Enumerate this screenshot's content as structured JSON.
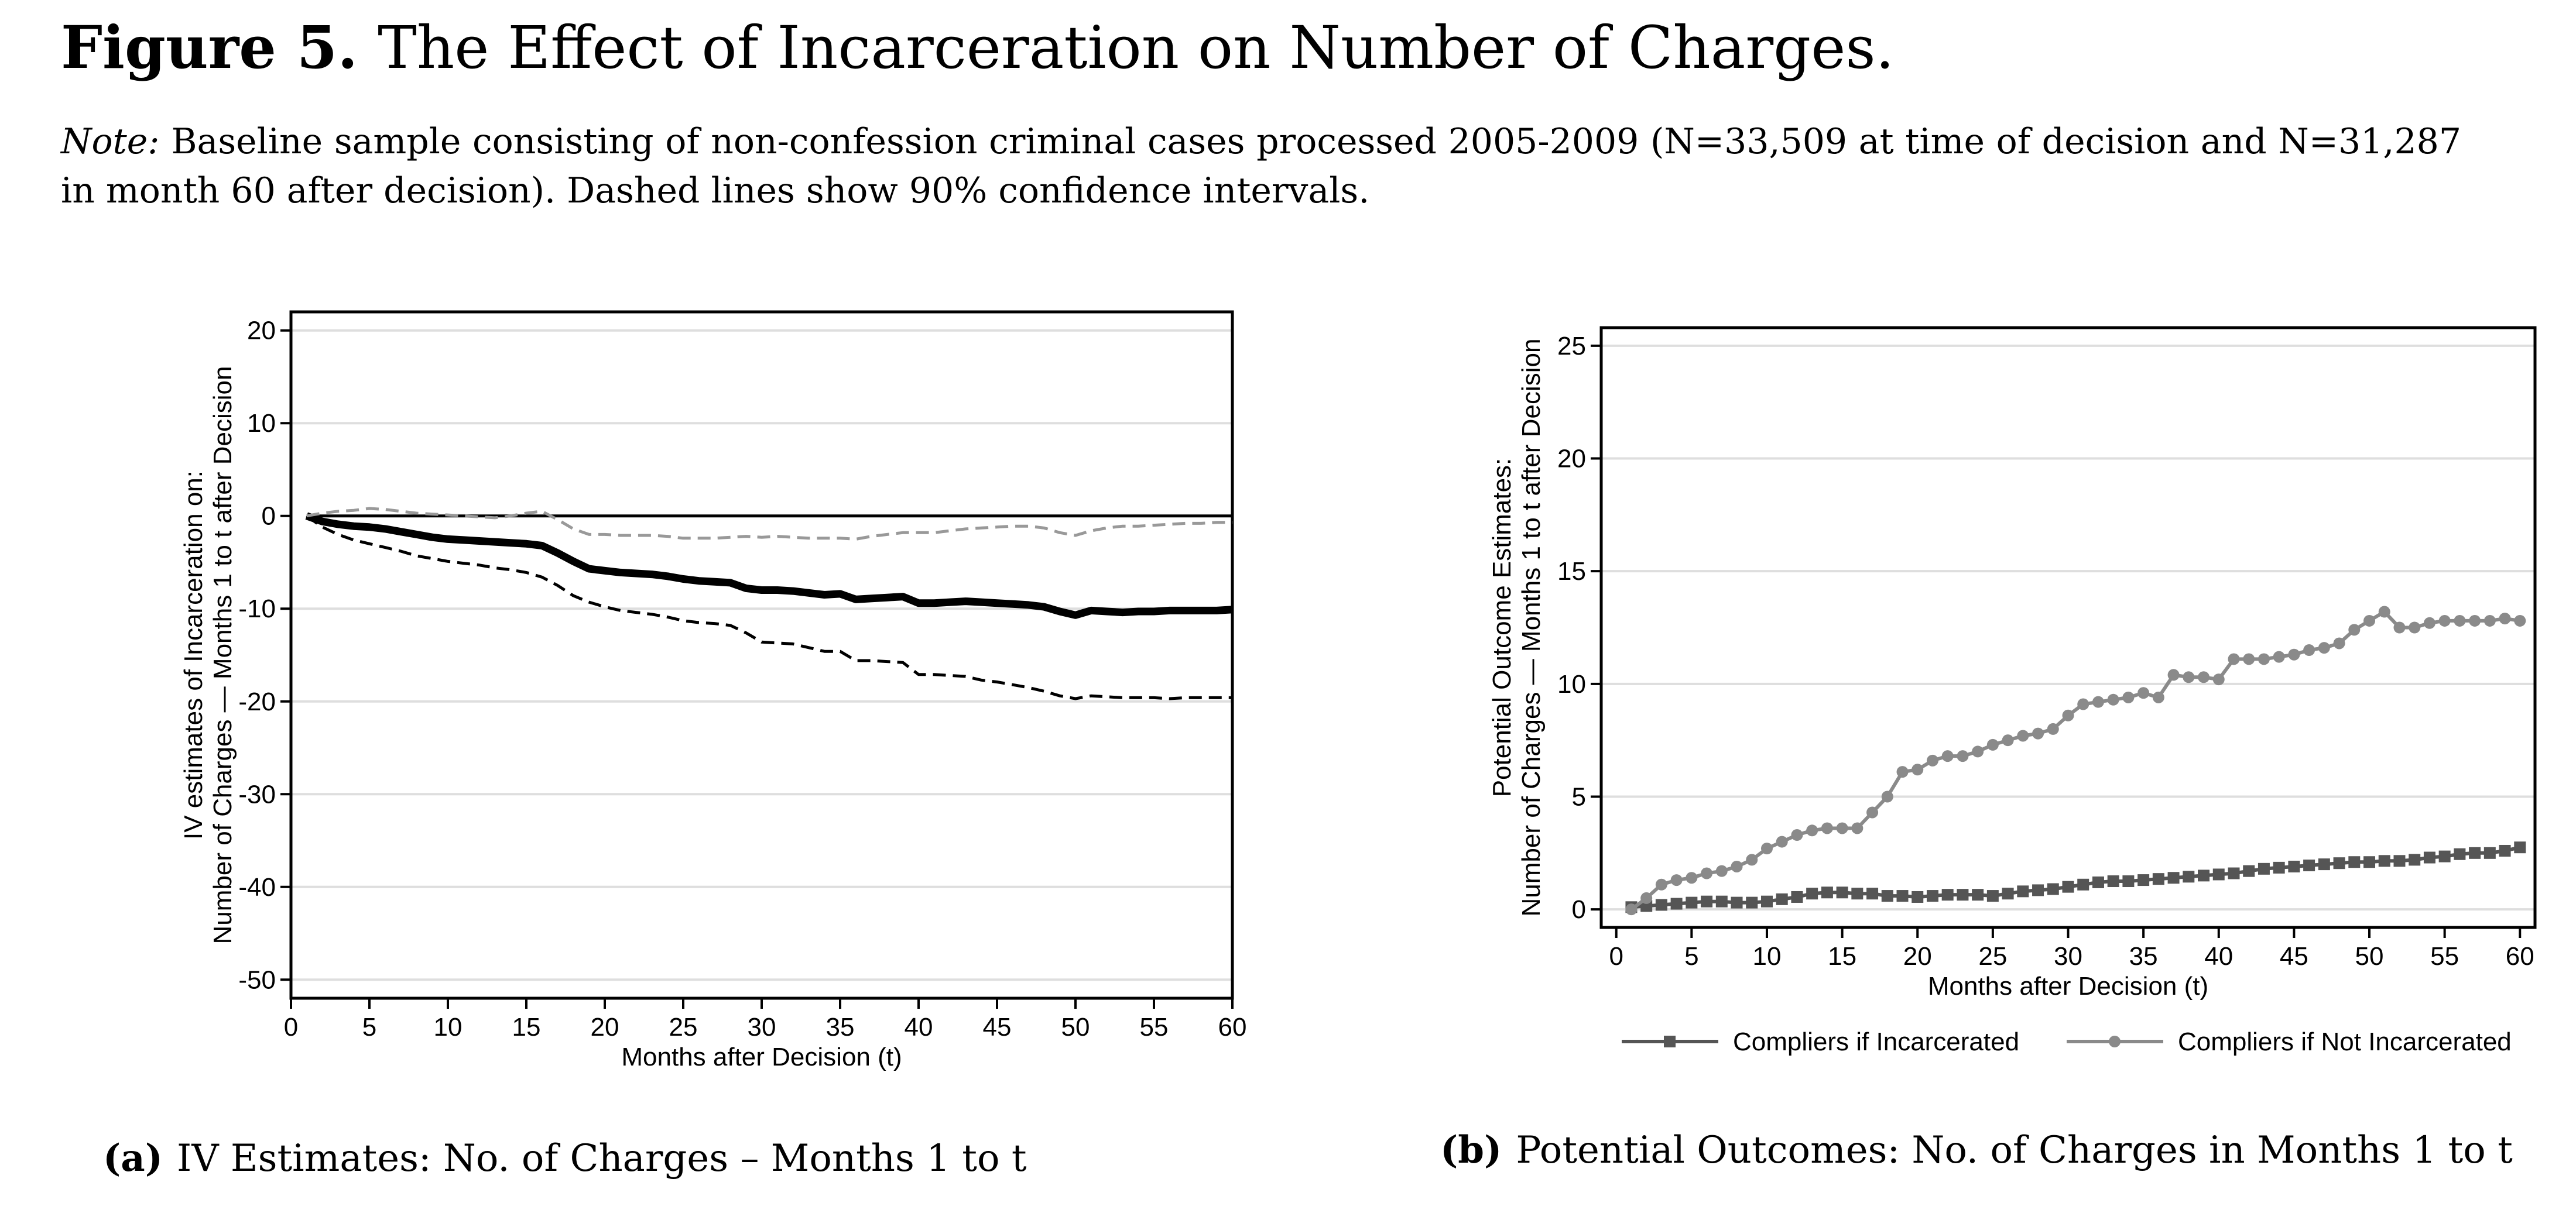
{
  "figure": {
    "number": "Figure 5.",
    "title": "The Effect of Incarceration on Number of Charges.",
    "note_label": "Note:",
    "note_text": "Baseline sample consisting of non-confession criminal cases processed 2005-2009 (N=33,509 at time of decision and N=31,287 in month 60 after decision). Dashed lines show 90% confidence intervals."
  },
  "captions": {
    "a_tag": "(a)",
    "a_text": "IV Estimates: No. of Charges – Months 1 to t",
    "b_tag": "(b)",
    "b_text": "Potential Outcomes: No. of Charges in Months 1 to t"
  },
  "chart_data": [
    {
      "type": "line",
      "title": "",
      "xlabel": "Months after Decision (t)",
      "ylabel_lines": [
        "IV estimates of Incarceration on:",
        "Number of Charges — Months 1 to t after Decision"
      ],
      "xlim": [
        0,
        60
      ],
      "ylim": [
        -52,
        22
      ],
      "xticks": [
        0,
        5,
        10,
        15,
        20,
        25,
        30,
        35,
        40,
        45,
        50,
        55,
        60
      ],
      "yticks": [
        -50,
        -40,
        -30,
        -20,
        -10,
        0,
        10,
        20
      ],
      "grid": true,
      "reference_line": 0,
      "x": [
        1,
        2,
        3,
        4,
        5,
        6,
        7,
        8,
        9,
        10,
        11,
        12,
        13,
        14,
        15,
        16,
        17,
        18,
        19,
        20,
        21,
        22,
        23,
        24,
        25,
        26,
        27,
        28,
        29,
        30,
        31,
        32,
        33,
        34,
        35,
        36,
        37,
        38,
        39,
        40,
        41,
        42,
        43,
        44,
        45,
        46,
        47,
        48,
        49,
        50,
        51,
        52,
        53,
        54,
        55,
        56,
        57,
        58,
        59,
        60
      ],
      "series": [
        {
          "style": "solid",
          "color": "#000000",
          "values": [
            0,
            -0.6,
            -0.9,
            -1.1,
            -1.2,
            -1.4,
            -1.7,
            -2.0,
            -2.3,
            -2.5,
            -2.6,
            -2.7,
            -2.8,
            -2.9,
            -3.0,
            -3.2,
            -4.0,
            -4.9,
            -5.7,
            -5.9,
            -6.1,
            -6.2,
            -6.3,
            -6.5,
            -6.8,
            -7.0,
            -7.1,
            -7.2,
            -7.8,
            -8.0,
            -8.0,
            -8.1,
            -8.3,
            -8.5,
            -8.4,
            -9.0,
            -8.9,
            -8.8,
            -8.7,
            -9.4,
            -9.4,
            -9.3,
            -9.2,
            -9.3,
            -9.4,
            -9.5,
            -9.6,
            -9.8,
            -10.3,
            -10.7,
            -10.2,
            -10.3,
            -10.4,
            -10.3,
            -10.3,
            -10.2,
            -10.2,
            -10.2,
            -10.2,
            -10.1
          ]
        },
        {
          "style": "dashed",
          "color": "#000000",
          "values": [
            0,
            -1.2,
            -2.0,
            -2.6,
            -3.0,
            -3.4,
            -3.8,
            -4.3,
            -4.6,
            -4.9,
            -5.1,
            -5.3,
            -5.6,
            -5.8,
            -6.1,
            -6.6,
            -7.5,
            -8.6,
            -9.3,
            -9.8,
            -10.2,
            -10.4,
            -10.6,
            -10.9,
            -11.3,
            -11.5,
            -11.6,
            -11.8,
            -12.6,
            -13.6,
            -13.7,
            -13.8,
            -14.2,
            -14.6,
            -14.6,
            -15.6,
            -15.6,
            -15.7,
            -15.8,
            -17.1,
            -17.1,
            -17.2,
            -17.3,
            -17.7,
            -17.9,
            -18.2,
            -18.5,
            -18.9,
            -19.4,
            -19.7,
            -19.4,
            -19.5,
            -19.6,
            -19.6,
            -19.6,
            -19.7,
            -19.6,
            -19.6,
            -19.6,
            -19.6
          ]
        },
        {
          "style": "dashed",
          "color": "#999999",
          "values": [
            0,
            0.3,
            0.5,
            0.6,
            0.8,
            0.7,
            0.5,
            0.3,
            0.2,
            0.1,
            0.0,
            -0.1,
            -0.2,
            0.0,
            0.3,
            0.5,
            -0.4,
            -1.4,
            -2.0,
            -2.0,
            -2.1,
            -2.1,
            -2.1,
            -2.2,
            -2.4,
            -2.4,
            -2.4,
            -2.3,
            -2.2,
            -2.3,
            -2.2,
            -2.3,
            -2.4,
            -2.4,
            -2.4,
            -2.5,
            -2.2,
            -2.0,
            -1.8,
            -1.8,
            -1.8,
            -1.6,
            -1.4,
            -1.3,
            -1.2,
            -1.1,
            -1.1,
            -1.3,
            -1.8,
            -2.1,
            -1.6,
            -1.3,
            -1.1,
            -1.1,
            -1.0,
            -0.9,
            -0.8,
            -0.8,
            -0.7,
            -0.7
          ]
        }
      ]
    },
    {
      "type": "line",
      "title": "",
      "xlabel": "Months after Decision (t)",
      "ylabel_lines": [
        "Potential Outcome Estimates:",
        "Number of Charges — Months 1 to t after Decision"
      ],
      "xlim": [
        -1,
        61
      ],
      "ylim": [
        -0.8,
        25.8
      ],
      "xticks": [
        0,
        5,
        10,
        15,
        20,
        25,
        30,
        35,
        40,
        45,
        50,
        55,
        60
      ],
      "yticks": [
        0,
        5,
        10,
        15,
        20,
        25
      ],
      "grid": true,
      "legend_position": "bottom",
      "x": [
        1,
        2,
        3,
        4,
        5,
        6,
        7,
        8,
        9,
        10,
        11,
        12,
        13,
        14,
        15,
        16,
        17,
        18,
        19,
        20,
        21,
        22,
        23,
        24,
        25,
        26,
        27,
        28,
        29,
        30,
        31,
        32,
        33,
        34,
        35,
        36,
        37,
        38,
        39,
        40,
        41,
        42,
        43,
        44,
        45,
        46,
        47,
        48,
        49,
        50,
        51,
        52,
        53,
        54,
        55,
        56,
        57,
        58,
        59,
        60
      ],
      "series": [
        {
          "name": "Compliers if Incarcerated",
          "color": "#555555",
          "marker": "square",
          "values": [
            0.1,
            0.15,
            0.2,
            0.25,
            0.3,
            0.35,
            0.35,
            0.3,
            0.3,
            0.35,
            0.45,
            0.55,
            0.7,
            0.75,
            0.75,
            0.7,
            0.7,
            0.6,
            0.6,
            0.55,
            0.6,
            0.65,
            0.65,
            0.65,
            0.6,
            0.7,
            0.8,
            0.85,
            0.9,
            1.0,
            1.1,
            1.2,
            1.25,
            1.25,
            1.3,
            1.35,
            1.4,
            1.45,
            1.5,
            1.55,
            1.6,
            1.7,
            1.8,
            1.85,
            1.9,
            1.95,
            2.0,
            2.05,
            2.1,
            2.1,
            2.15,
            2.15,
            2.2,
            2.3,
            2.35,
            2.45,
            2.5,
            2.5,
            2.6,
            2.75
          ]
        },
        {
          "name": "Compliers if Not Incarcerated",
          "color": "#8a8a8a",
          "marker": "circle",
          "values": [
            0.0,
            0.5,
            1.1,
            1.3,
            1.4,
            1.6,
            1.7,
            1.9,
            2.2,
            2.7,
            3.0,
            3.3,
            3.5,
            3.6,
            3.6,
            3.6,
            4.3,
            5.0,
            6.1,
            6.2,
            6.6,
            6.8,
            6.8,
            7.0,
            7.3,
            7.5,
            7.7,
            7.8,
            8.0,
            8.6,
            9.1,
            9.2,
            9.3,
            9.4,
            9.6,
            9.4,
            10.4,
            10.3,
            10.3,
            10.2,
            11.1,
            11.1,
            11.1,
            11.2,
            11.3,
            11.5,
            11.6,
            11.8,
            12.4,
            12.8,
            13.2,
            12.5,
            12.5,
            12.7,
            12.8,
            12.8,
            12.8,
            12.8,
            12.9,
            12.8
          ]
        }
      ]
    }
  ]
}
